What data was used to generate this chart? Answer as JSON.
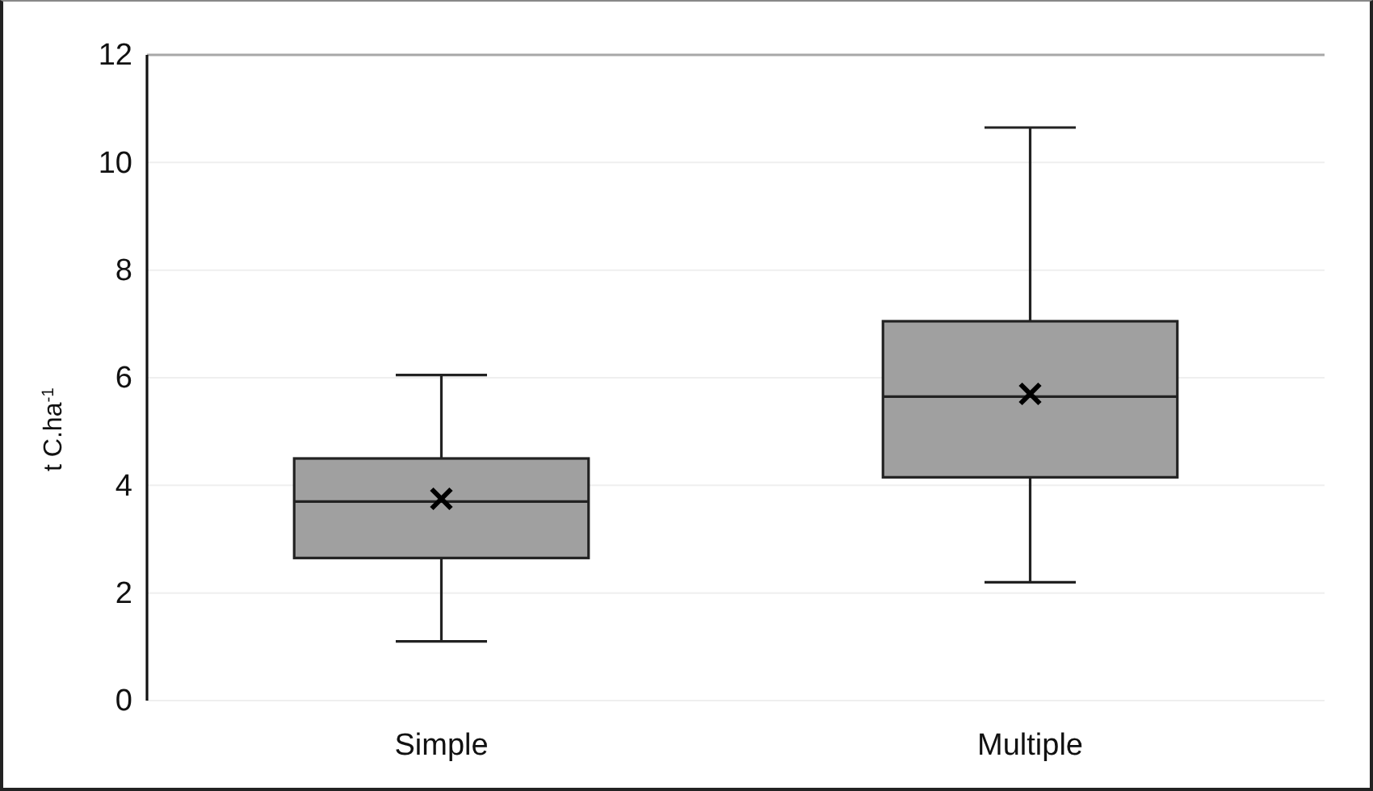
{
  "chart_data": {
    "type": "box",
    "ylabel": "t C.ha$^{-1}$",
    "categories": [
      "Simple",
      "Multiple"
    ],
    "boxes": [
      {
        "low": 1.1,
        "q1": 2.65,
        "median": 3.7,
        "q3": 4.5,
        "high": 6.05,
        "mean": 3.75
      },
      {
        "low": 2.2,
        "q1": 4.15,
        "median": 5.65,
        "q3": 7.05,
        "high": 10.65,
        "mean": 5.7
      }
    ],
    "color": "#a0a0a0",
    "ylim": [
      0,
      12
    ],
    "yticks": [
      0,
      2,
      4,
      6,
      8,
      10,
      12
    ],
    "grid": "y"
  }
}
